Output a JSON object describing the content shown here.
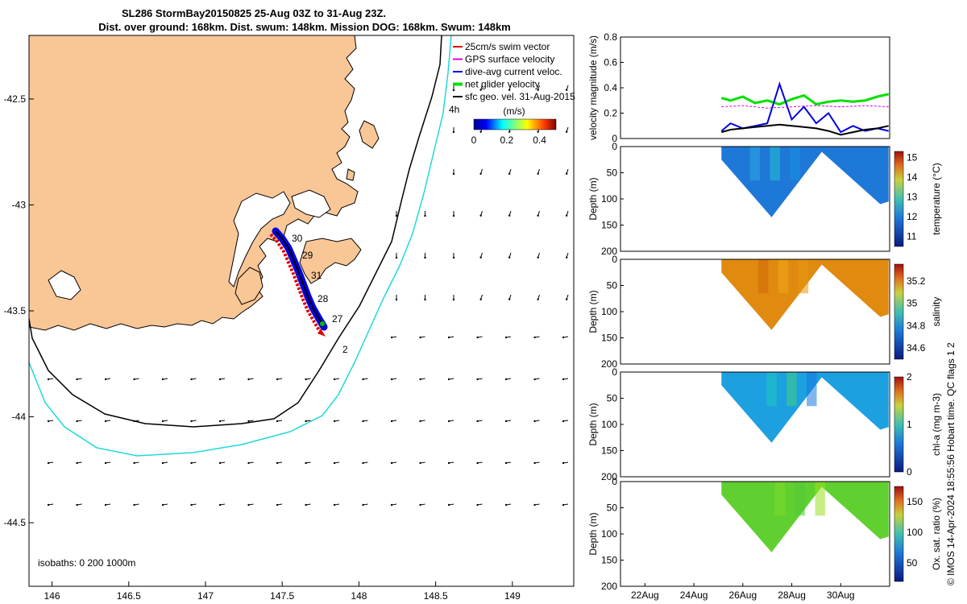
{
  "title": {
    "line1": "SL286 StormBay20150825 25-Aug 03Z to 31-Aug 23Z.",
    "line2": "Dist. over ground: 168km. Dist. swum: 148km. Mission DOG: 168km. Swum: 148km"
  },
  "map": {
    "lon_ticks": [
      "146",
      "146.5",
      "147",
      "147.5",
      "148",
      "148.5",
      "149"
    ],
    "lat_ticks": [
      "-42.5",
      "-43",
      "-43.5",
      "-44",
      "-44.5"
    ],
    "xlim": [
      145.85,
      149.4
    ],
    "ylim": [
      -44.8,
      -42.2
    ],
    "isobaths_label": "isobaths: 0   200  1000m",
    "day_labels": [
      "30",
      "29",
      "31",
      "28",
      "27",
      "2",
      "4h"
    ],
    "legend": [
      {
        "label": "25cm/s swim vector",
        "color": "#e00000"
      },
      {
        "label": "GPS surface velocity",
        "color": "#e000e0"
      },
      {
        "label": "dive-avg current veloc.",
        "color": "#0000e0"
      },
      {
        "label": "net glider velocity",
        "color": "#00e000"
      },
      {
        "label": "sfc geo. vel. 31-Aug-2015",
        "color": "#000000"
      }
    ],
    "colorbar": {
      "title": "(m/s)",
      "ticks": [
        "0",
        "0.2",
        "0.4"
      ],
      "range": [
        0,
        0.5
      ]
    }
  },
  "chart_data": [
    {
      "type": "line",
      "ylabel": "velocity magnitude (m/s)",
      "ylim": [
        0,
        0.8
      ],
      "yticks": [
        "0",
        "0.2",
        "0.4",
        "0.6",
        "0.8"
      ],
      "xlim_days": [
        "21-Aug",
        "1-Sep"
      ],
      "series": [
        {
          "color": "#00e000",
          "x": [
            "25-Aug 03Z",
            "25-Aug 12Z",
            "26-Aug 00Z",
            "26-Aug 12Z",
            "27-Aug 00Z",
            "27-Aug 12Z",
            "28-Aug 00Z",
            "28-Aug 12Z",
            "29-Aug 00Z",
            "29-Aug 12Z",
            "30-Aug 00Z",
            "30-Aug 12Z",
            "31-Aug 00Z",
            "31-Aug 12Z",
            "31-Aug 23Z"
          ],
          "values": [
            0.32,
            0.3,
            0.33,
            0.28,
            0.3,
            0.27,
            0.31,
            0.34,
            0.27,
            0.29,
            0.3,
            0.29,
            0.3,
            0.33,
            0.35
          ]
        },
        {
          "color": "#0000e0",
          "x": [
            "25-Aug 03Z",
            "25-Aug 12Z",
            "26-Aug 00Z",
            "26-Aug 12Z",
            "27-Aug 00Z",
            "27-Aug 12Z",
            "28-Aug 00Z",
            "28-Aug 12Z",
            "29-Aug 00Z",
            "29-Aug 12Z",
            "30-Aug 00Z",
            "30-Aug 12Z",
            "31-Aug 00Z",
            "31-Aug 12Z",
            "31-Aug 23Z"
          ],
          "values": [
            0.06,
            0.12,
            0.08,
            0.1,
            0.12,
            0.43,
            0.15,
            0.25,
            0.12,
            0.2,
            0.05,
            0.1,
            0.06,
            0.08,
            0.06
          ]
        },
        {
          "color": "#000000",
          "x": [
            "25-Aug 03Z",
            "25-Aug 12Z",
            "26-Aug 00Z",
            "26-Aug 12Z",
            "27-Aug 00Z",
            "27-Aug 12Z",
            "28-Aug 00Z",
            "28-Aug 12Z",
            "29-Aug 00Z",
            "29-Aug 12Z",
            "30-Aug 00Z",
            "30-Aug 12Z",
            "31-Aug 00Z",
            "31-Aug 12Z",
            "31-Aug 23Z"
          ],
          "values": [
            0.05,
            0.07,
            0.08,
            0.09,
            0.1,
            0.11,
            0.1,
            0.09,
            0.08,
            0.06,
            0.03,
            0.05,
            0.07,
            0.08,
            0.1
          ]
        },
        {
          "color": "#e000e0",
          "x": [
            "25-Aug 03Z",
            "26-Aug 00Z",
            "27-Aug 00Z",
            "28-Aug 00Z",
            "29-Aug 00Z",
            "30-Aug 00Z",
            "31-Aug 00Z",
            "31-Aug 23Z"
          ],
          "values": [
            0.25,
            0.26,
            0.24,
            0.25,
            0.26,
            0.25,
            0.26,
            0.25
          ]
        }
      ]
    },
    {
      "type": "heatmap",
      "ylabel": "Depth (m)",
      "cbar_label": "temperature (°C)",
      "cbar_ticks": [
        "11",
        "12",
        "13",
        "14",
        "15"
      ],
      "crange": [
        10.5,
        15.3
      ],
      "ylim": [
        0,
        200
      ],
      "yticks": [
        "0",
        "50",
        "100",
        "150",
        "200"
      ],
      "colors": [
        "#1e78d8",
        "#2aa8e0",
        "#22c0d0",
        "#1890e0"
      ]
    },
    {
      "type": "heatmap",
      "ylabel": "Depth (m)",
      "cbar_label": "salinity",
      "cbar_ticks": [
        "34.6",
        "34.8",
        "35",
        "35.2"
      ],
      "crange": [
        34.5,
        35.35
      ],
      "ylim": [
        0,
        200
      ],
      "yticks": [
        "0",
        "50",
        "100",
        "150",
        "200"
      ],
      "colors": [
        "#e08a10",
        "#d06808",
        "#f0a818",
        "#e89810"
      ]
    },
    {
      "type": "heatmap",
      "ylabel": "Depth (m)",
      "cbar_label": "chl-a (mg m-3)",
      "cbar_ticks": [
        "0",
        "1",
        "2"
      ],
      "crange": [
        0,
        2
      ],
      "ylim": [
        0,
        200
      ],
      "yticks": [
        "0",
        "50",
        "100",
        "150",
        "200"
      ],
      "colors": [
        "#1ca0e0",
        "#20c8c0",
        "#40d080",
        "#1878e0"
      ]
    },
    {
      "type": "heatmap",
      "ylabel": "Depth (m)",
      "cbar_label": "Ox. sat. ratio (%)",
      "cbar_ticks": [
        "50",
        "100",
        "150"
      ],
      "crange": [
        20,
        175
      ],
      "ylim": [
        0,
        200
      ],
      "yticks": [
        "0",
        "50",
        "100",
        "150",
        "200"
      ],
      "colors": [
        "#60d030",
        "#80d828",
        "#50c838",
        "#98e020"
      ]
    }
  ],
  "time_ticks": [
    "22Aug",
    "24Aug",
    "26Aug",
    "28Aug",
    "30Aug"
  ],
  "credit": "© IMOS 14-Apr-2024 18:55:56 Hobart time. QC flags 1  2"
}
